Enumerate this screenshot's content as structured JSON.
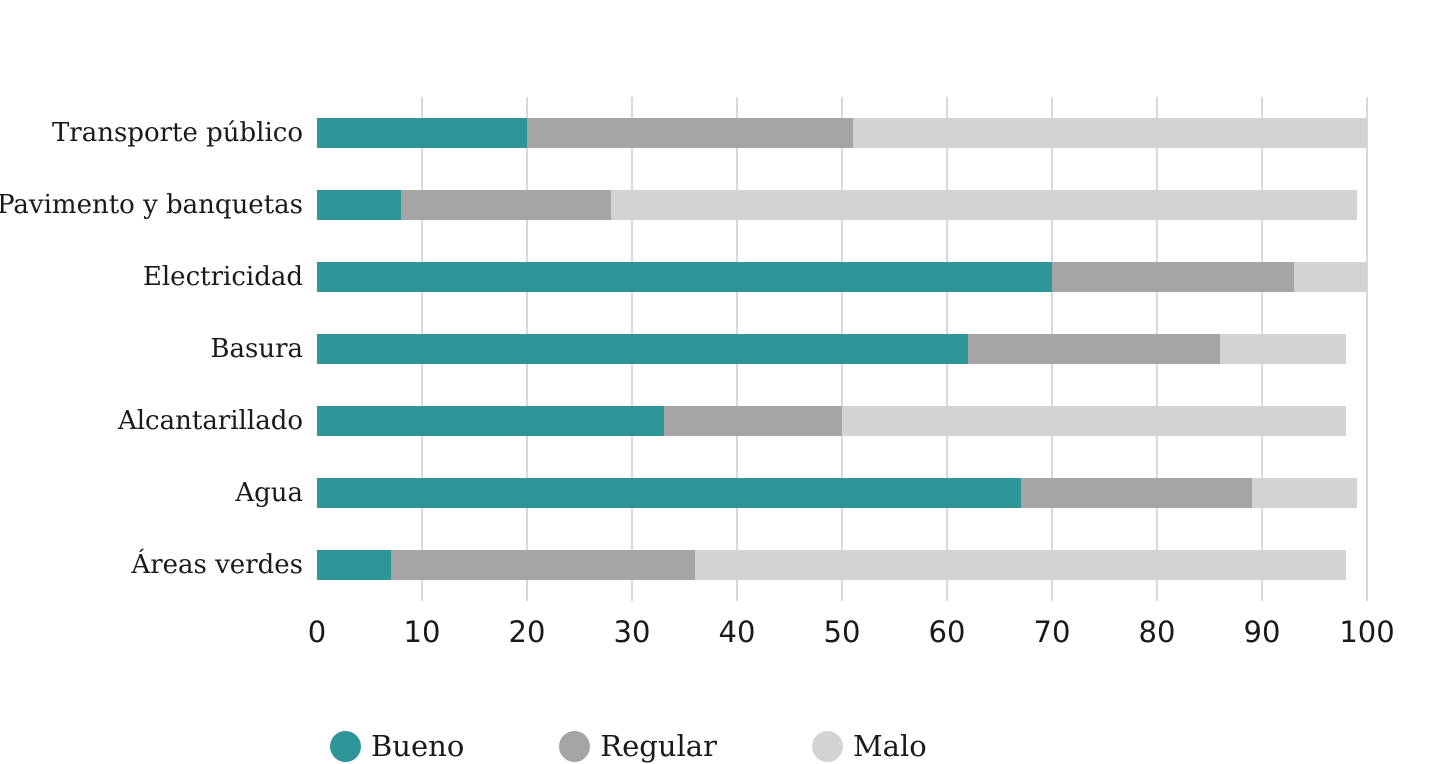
{
  "chart_data": {
    "type": "bar",
    "orientation": "horizontal",
    "stacked": true,
    "title": "",
    "xlabel": "",
    "ylabel": "",
    "categories": [
      "Transporte público",
      "Pavimento y banquetas",
      "Electricidad",
      "Basura",
      "Alcantarillado",
      "Agua",
      "Áreas verdes"
    ],
    "series": [
      {
        "name": "Bueno",
        "color": "#2e9598",
        "values": [
          20,
          8,
          70,
          62,
          33,
          67,
          7
        ]
      },
      {
        "name": "Regular",
        "color": "#a5a5a5",
        "values": [
          31,
          20,
          23,
          24,
          17,
          22,
          29
        ]
      },
      {
        "name": "Malo",
        "color": "#d3d3d3",
        "values": [
          49,
          71,
          7,
          12,
          48,
          10,
          62
        ]
      }
    ],
    "xlim": [
      0,
      100
    ],
    "xticks": [
      0,
      10,
      20,
      30,
      40,
      50,
      60,
      70,
      80,
      90,
      100
    ],
    "grid": "vertical",
    "legend_position": "bottom"
  },
  "colors": {
    "grid": "#d9d9d9",
    "text": "#1a1a1a",
    "background": "#ffffff"
  }
}
